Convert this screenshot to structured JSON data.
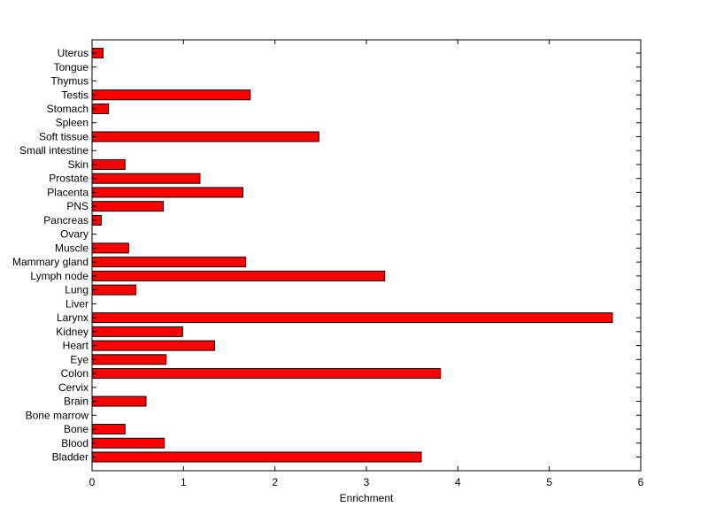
{
  "chart_data": {
    "type": "bar",
    "orientation": "horizontal",
    "title": "",
    "xlabel": "Enrichment",
    "ylabel": "",
    "xlim": [
      0,
      6
    ],
    "xticks": [
      "0",
      "1",
      "2",
      "3",
      "4",
      "5",
      "6"
    ],
    "grid": false,
    "legend": "none",
    "bar_color": "#ff0000",
    "categories": [
      "Bladder",
      "Blood",
      "Bone",
      "Bone marrow",
      "Brain",
      "Cervix",
      "Colon",
      "Eye",
      "Heart",
      "Kidney",
      "Larynx",
      "Liver",
      "Lung",
      "Lymph node",
      "Mammary gland",
      "Muscle",
      "Ovary",
      "Pancreas",
      "PNS",
      "Placenta",
      "Prostate",
      "Skin",
      "Small intestine",
      "Soft tissue",
      "Spleen",
      "Stomach",
      "Testis",
      "Thymus",
      "Tongue",
      "Uterus"
    ],
    "values": [
      3.6,
      0.79,
      0.36,
      0,
      0.59,
      0,
      3.81,
      0.81,
      1.34,
      0.99,
      5.69,
      0,
      0.48,
      3.2,
      1.68,
      0.4,
      0,
      0.1,
      0.78,
      1.65,
      1.18,
      0.36,
      0,
      2.48,
      0,
      0.18,
      1.73,
      0,
      0,
      0.12
    ]
  }
}
